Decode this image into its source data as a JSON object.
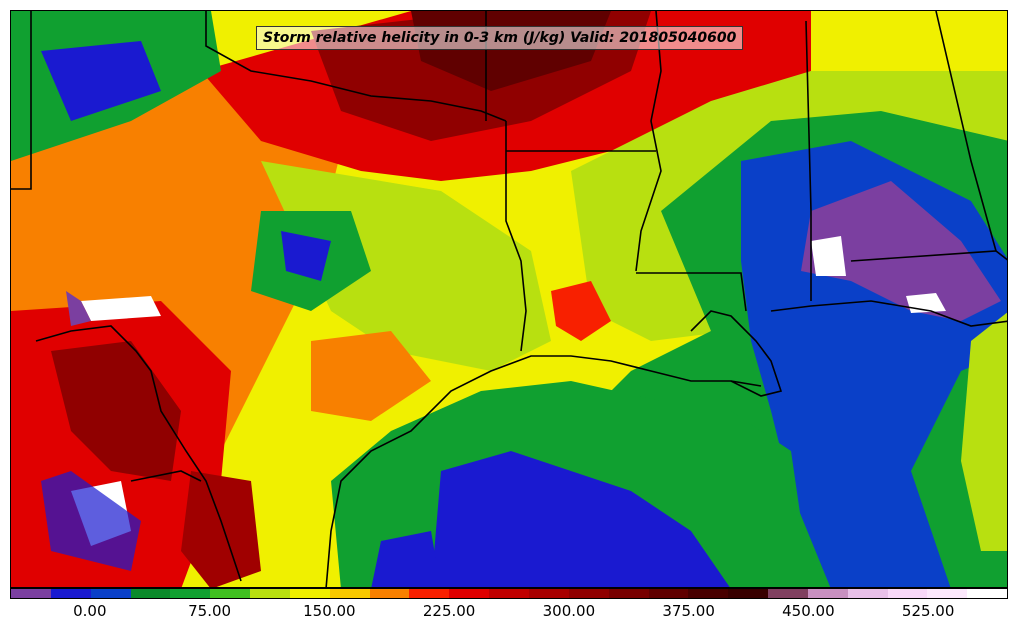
{
  "title": "Storm relative helicity in 0-3 km (J/kg) Valid: 201805040600",
  "colorbar": {
    "colors": [
      "#7b3fa0",
      "#1a1ad0",
      "#0a40c8",
      "#0a8a2a",
      "#10a030",
      "#40c020",
      "#b8e010",
      "#f0f000",
      "#f8c800",
      "#f88000",
      "#f82000",
      "#e00000",
      "#c00000",
      "#a80000",
      "#900000",
      "#780000",
      "#600000",
      "#480000",
      "#380000",
      "#804060",
      "#c890c0",
      "#e8c0e8",
      "#f8d8f8",
      "#fce8fc",
      "#ffffff"
    ],
    "tick_labels": [
      "0.00",
      "75.00",
      "150.00",
      "225.00",
      "300.00",
      "375.00",
      "450.00",
      "525.00"
    ],
    "tick_values": [
      0,
      75,
      150,
      225,
      300,
      375,
      450,
      525
    ],
    "range": [
      -50,
      575
    ]
  },
  "field_colors": {
    "low_blue": "#1a1ad0",
    "green": "#10a030",
    "lime": "#b8e010",
    "yellow": "#f0f000",
    "orange": "#f88000",
    "red": "#f82000",
    "dark_red": "#900000",
    "purple": "#7b3fa0",
    "white": "#ffffff"
  }
}
